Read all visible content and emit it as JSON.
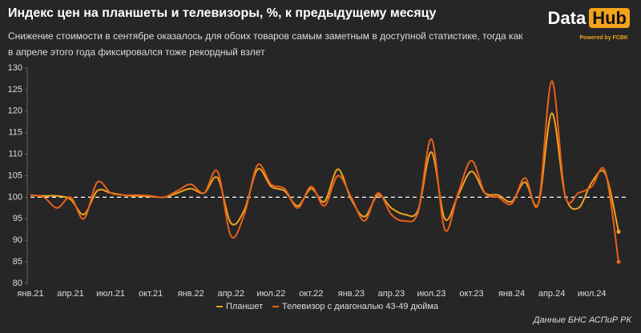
{
  "chart_data": {
    "type": "line",
    "title": "Индекс цен на планшеты и телевизоры, %, к предыдущему месяцу",
    "subtitle": "Снижение стоимости в сентябре оказалось для обоих товаров самым заметным в доступной статистике, тогда как в апреле этого года фиксировался тоже рекордный взлет",
    "logo": "Data",
    "logo_badge": "Hub",
    "logo_sub": "Powered by FCBK",
    "source": "Данные БНС АСПиР РК",
    "categories": [
      "янв.21",
      null,
      null,
      "апр.21",
      null,
      null,
      "июл.21",
      null,
      null,
      "окт.21",
      null,
      null,
      "янв.22",
      null,
      null,
      "апр.22",
      null,
      null,
      "июл.22",
      null,
      null,
      "окт.22",
      null,
      null,
      "янв.23",
      null,
      null,
      "апр.23",
      null,
      null,
      "июл.23",
      null,
      null,
      "окт.23",
      null,
      null,
      "янв.24",
      null,
      null,
      "апр.24",
      null,
      null,
      "июл.24",
      null,
      null
    ],
    "series": [
      {
        "name": "Планшет",
        "color": "#f2a31b",
        "values": [
          100.5,
          100.3,
          100.3,
          99.5,
          96,
          101.5,
          101,
          100.5,
          100.3,
          100.2,
          100,
          101,
          102,
          101,
          104.5,
          94,
          97,
          106.5,
          102.5,
          101.5,
          98,
          102,
          99,
          106.5,
          99.5,
          95.5,
          100.5,
          97.5,
          96,
          97,
          110.5,
          95,
          100.5,
          106,
          101,
          100.5,
          99,
          103.5,
          98.5,
          119.5,
          100.5,
          97.5,
          103.5,
          105.5,
          92
        ]
      },
      {
        "name": "Телевизор с диагональю 43-49 дюйма",
        "color": "#e8601c",
        "values": [
          100.5,
          100,
          97.5,
          100,
          95,
          103.5,
          101,
          100.5,
          100.5,
          100.3,
          100,
          101.5,
          103,
          101,
          106,
          91,
          96,
          107.5,
          103,
          102,
          97.5,
          102.5,
          98,
          105,
          100,
          94.5,
          101,
          96,
          94.5,
          96.5,
          113.5,
          92.5,
          101,
          108.5,
          101,
          100,
          98.5,
          104.5,
          98.5,
          127,
          100.5,
          101,
          102.5,
          106,
          85
        ]
      }
    ],
    "reference_line": 100,
    "ylim": [
      80,
      130
    ],
    "yticks": [
      80,
      85,
      90,
      95,
      100,
      105,
      110,
      115,
      120,
      125,
      130
    ],
    "grid": false
  }
}
